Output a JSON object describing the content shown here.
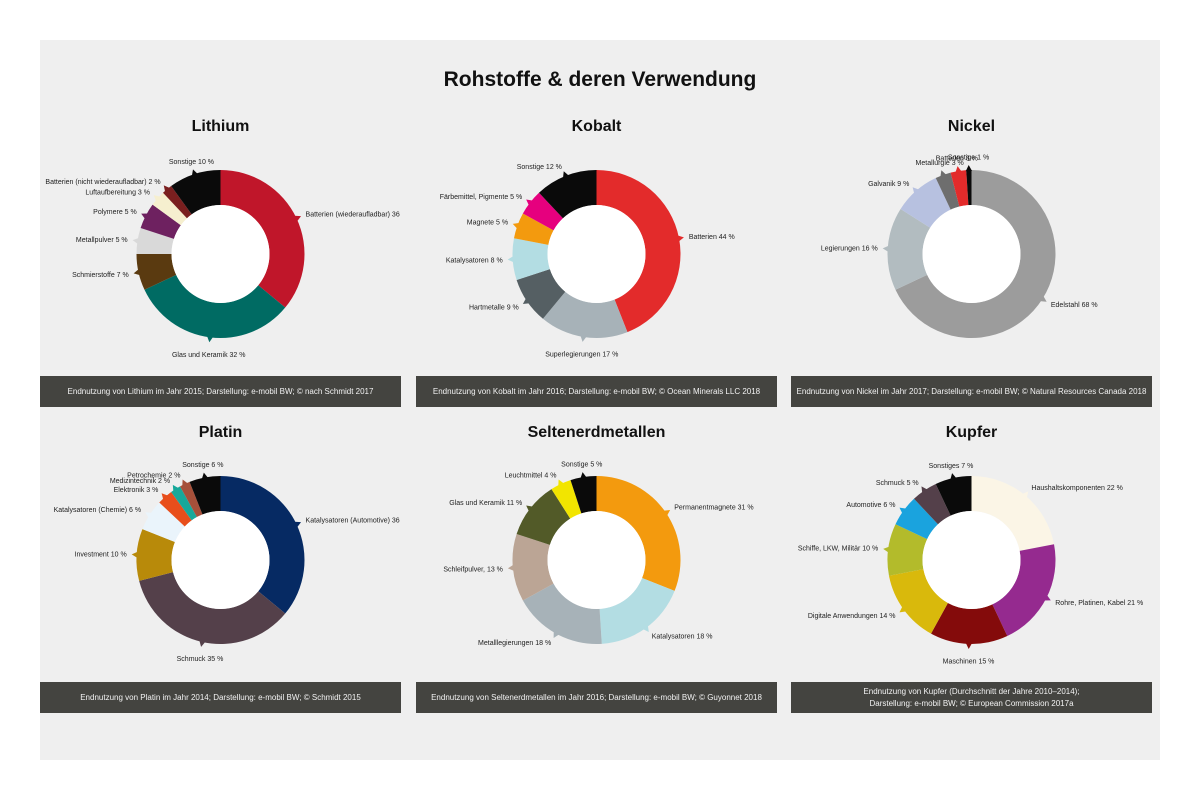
{
  "title": "Rohstoffe & deren Verwendung",
  "chart_data": [
    {
      "type": "pie",
      "title": "Lithium",
      "caption": "Endnutzung von Lithium im Jahr 2015; Darstellung: e-mobil BW; © nach Schmidt 2017",
      "slices": [
        {
          "label": "Batterien (wiederaufladbar) 36 %",
          "value": 36,
          "color": "#c0162a"
        },
        {
          "label": "Glas und Keramik 32 %",
          "value": 32,
          "color": "#006b63"
        },
        {
          "label": "Schmierstoffe 7 %",
          "value": 7,
          "color": "#5a3a10"
        },
        {
          "label": "Metallpulver 5 %",
          "value": 5,
          "color": "#d9d9d9"
        },
        {
          "label": "Polymere 5 %",
          "value": 5,
          "color": "#6e2160"
        },
        {
          "label": "Luftaufbereitung 3 %",
          "value": 3,
          "color": "#f6efcf"
        },
        {
          "label": "Batterien (nicht wiederaufladbar) 2 %",
          "value": 2,
          "color": "#7a1f1f"
        },
        {
          "label": "Sonstige 10 %",
          "value": 10,
          "color": "#0a0a0a"
        }
      ]
    },
    {
      "type": "pie",
      "title": "Kobalt",
      "caption": "Endnutzung von Kobalt im Jahr 2016; Darstellung: e-mobil BW; © Ocean Minerals LLC 2018",
      "slices": [
        {
          "label": "Batterien 44 %",
          "value": 44,
          "color": "#e32b2b"
        },
        {
          "label": "Superlegierungen 17 %",
          "value": 17,
          "color": "#a7b2b8"
        },
        {
          "label": "Hartmetalle 9 %",
          "value": 9,
          "color": "#555f63"
        },
        {
          "label": "Katalysatoren 8 %",
          "value": 8,
          "color": "#b3dde3"
        },
        {
          "label": "Magnete 5 %",
          "value": 5,
          "color": "#f39a0e"
        },
        {
          "label": "Färbemittel, Pigmente 5 %",
          "value": 5,
          "color": "#e6007e"
        },
        {
          "label": "Sonstige 12 %",
          "value": 12,
          "color": "#0a0a0a"
        }
      ]
    },
    {
      "type": "pie",
      "title": "Nickel",
      "caption": "Endnutzung von Nickel im Jahr 2017; Darstellung: e-mobil BW; © Natural Resources Canada 2018",
      "slices": [
        {
          "label": "Edelstahl 68 %",
          "value": 68,
          "color": "#9c9c9c"
        },
        {
          "label": "Legierungen 16 %",
          "value": 16,
          "color": "#b2bcc0"
        },
        {
          "label": "Galvanik 9 %",
          "value": 9,
          "color": "#b7c1e0"
        },
        {
          "label": "Metallurgie 3 %",
          "value": 3,
          "color": "#6e6e6e"
        },
        {
          "label": "Batterien 3 %",
          "value": 3,
          "color": "#e32b2b"
        },
        {
          "label": "Sonstige 1 %",
          "value": 1,
          "color": "#0a0a0a"
        }
      ]
    },
    {
      "type": "pie",
      "title": "Platin",
      "caption": "Endnutzung von Platin im Jahr 2014; Darstellung: e-mobil BW; © Schmidt 2015",
      "slices": [
        {
          "label": "Katalysatoren (Automotive) 36 %",
          "value": 36,
          "color": "#062a63"
        },
        {
          "label": "Schmuck 35 %",
          "value": 35,
          "color": "#54404a"
        },
        {
          "label": "Investment 10 %",
          "value": 10,
          "color": "#b88a0a"
        },
        {
          "label": "Katalysatoren (Chemie) 6 %",
          "value": 6,
          "color": "#eaf4fb"
        },
        {
          "label": "Elektronik 3 %",
          "value": 3,
          "color": "#e84e1b"
        },
        {
          "label": "Medizintechnik 2 %",
          "value": 2,
          "color": "#17a89a"
        },
        {
          "label": "Petrochemie 2 %",
          "value": 2,
          "color": "#a6503a"
        },
        {
          "label": "Sonstige 6 %",
          "value": 6,
          "color": "#0a0a0a"
        }
      ]
    },
    {
      "type": "pie",
      "title": "Seltenerdmetallen",
      "caption": "Endnutzung von Seltenerdmetallen im Jahr 2016; Darstellung: e-mobil BW; © Guyonnet 2018",
      "slices": [
        {
          "label": "Permanentmagnete 31 %",
          "value": 31,
          "color": "#f39a0e"
        },
        {
          "label": "Katalysatoren 18 %",
          "value": 18,
          "color": "#b3dde3"
        },
        {
          "label": "Metalllegierungen 18 %",
          "value": 18,
          "color": "#a7b2b8"
        },
        {
          "label": "Schleifpulver, 13 %",
          "value": 13,
          "color": "#bba595"
        },
        {
          "label": "Glas und Keramik 11 %",
          "value": 11,
          "color": "#525a28"
        },
        {
          "label": "Leuchtmittel 4 %",
          "value": 4,
          "color": "#f2e500"
        },
        {
          "label": "Sonstige 5 %",
          "value": 5,
          "color": "#0a0a0a"
        }
      ]
    },
    {
      "type": "pie",
      "title": "Kupfer",
      "caption": "Endnutzung von Kupfer (Durchschnitt der Jahre 2010–2014);\nDarstellung: e-mobil BW; © European Commission 2017a",
      "slices": [
        {
          "label": "Haushaltskomponenten 22 %",
          "value": 22,
          "color": "#fbf5e6"
        },
        {
          "label": "Rohre, Platinen, Kabel 21 %",
          "value": 21,
          "color": "#952a8f"
        },
        {
          "label": "Maschinen 15 %",
          "value": 15,
          "color": "#840b0b"
        },
        {
          "label": "Digitale Anwendungen 14 %",
          "value": 14,
          "color": "#d9b90c"
        },
        {
          "label": "Schiffe, LKW, Militär 10 %",
          "value": 10,
          "color": "#b3bb2b"
        },
        {
          "label": "Automotive 6 %",
          "value": 6,
          "color": "#1aa3de"
        },
        {
          "label": "Schmuck 5 %",
          "value": 5,
          "color": "#54404a"
        },
        {
          "label": "Sonstiges 7 %",
          "value": 7,
          "color": "#0a0a0a"
        }
      ]
    }
  ]
}
